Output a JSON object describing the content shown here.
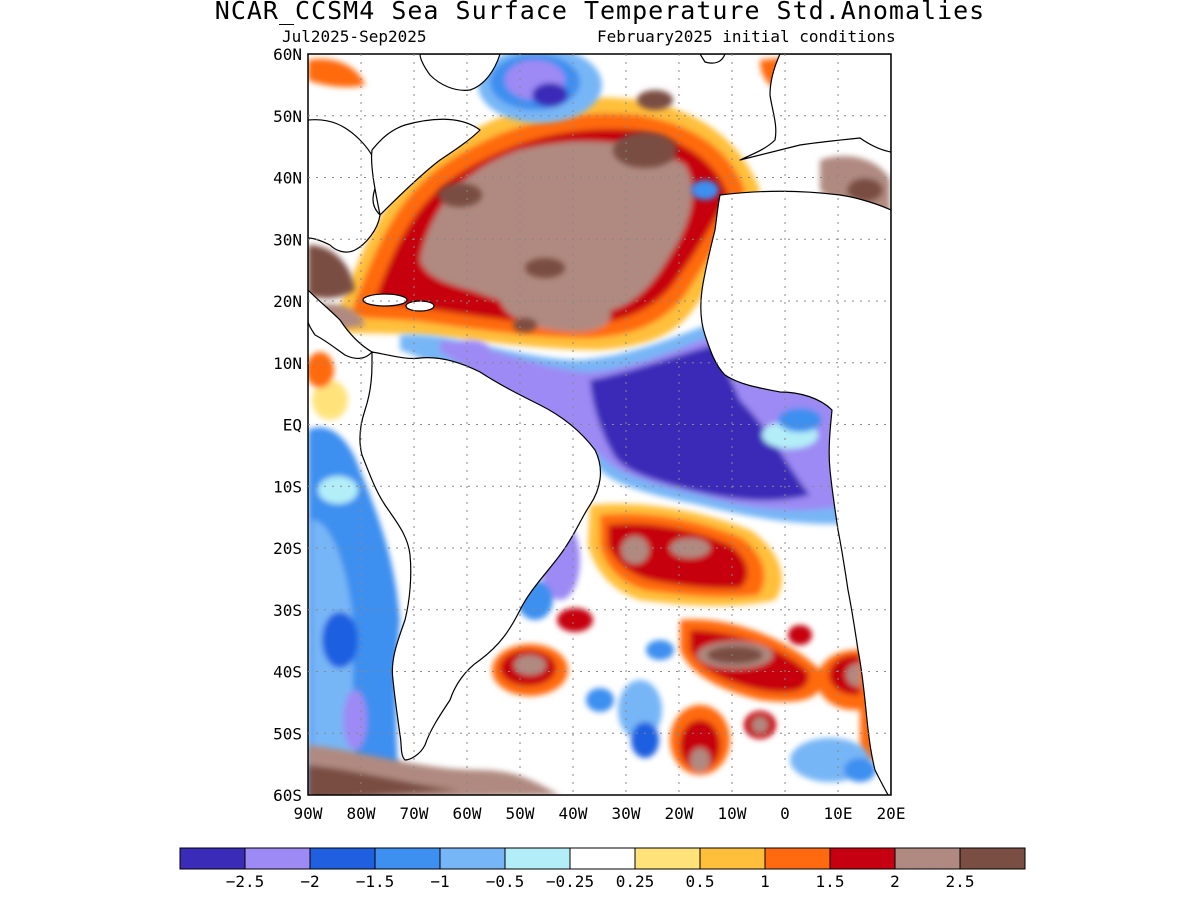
{
  "header": {
    "title": "NCAR_CCSM4 Sea Surface Temperature Std.Anomalies",
    "period": "Jul2025-Sep2025",
    "init": "February2025 initial conditions"
  },
  "map": {
    "lat_labels": [
      "60N",
      "50N",
      "40N",
      "30N",
      "20N",
      "10N",
      "EQ",
      "10S",
      "20S",
      "30S",
      "40S",
      "50S",
      "60S"
    ],
    "lon_labels": [
      "90W",
      "80W",
      "70W",
      "60W",
      "50W",
      "40W",
      "30W",
      "20W",
      "10W",
      "0",
      "10E",
      "20E"
    ],
    "lat_range": [
      -60,
      60
    ],
    "lon_range": [
      -90,
      20
    ],
    "grid": true
  },
  "colorbar": {
    "colors": [
      "#3a2cb8",
      "#9d8af4",
      "#1f5fe0",
      "#3d8ff0",
      "#77b6f6",
      "#b3eef8",
      "#ffffff",
      "#ffe37a",
      "#ffbf3a",
      "#ff6a10",
      "#c60010",
      "#b08a80",
      "#7a4e42"
    ],
    "labels": [
      "-2.5",
      "-2",
      "-1.5",
      "-1",
      "-0.5",
      "-0.25",
      "0.25",
      "0.5",
      "1",
      "1.5",
      "2",
      "2.5"
    ]
  }
}
